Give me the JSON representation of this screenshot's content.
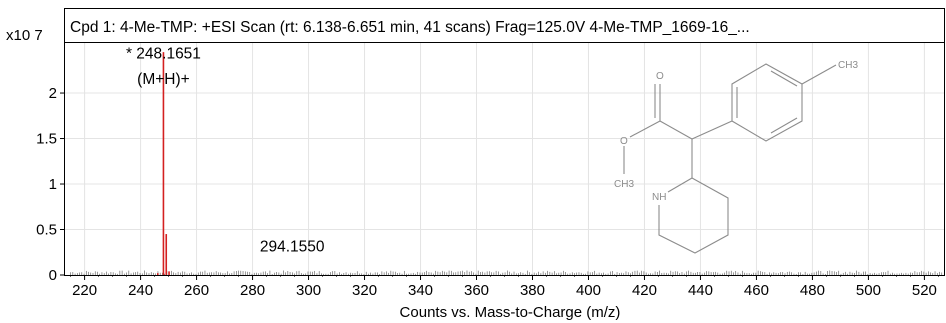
{
  "chart_data": {
    "type": "bar",
    "title": "Cpd 1: 4-Me-TMP: +ESI Scan (rt: 6.138-6.651 min, 41 scans) Frag=125.0V 4-Me-TMP_1669-16_...",
    "xlabel": "Counts vs. Mass-to-Charge (m/z)",
    "ylabel": "",
    "y_multiplier": "x10 7",
    "xlim": [
      213,
      527
    ],
    "ylim": [
      0,
      2.55
    ],
    "x_ticks": [
      "220",
      "240",
      "260",
      "280",
      "300",
      "320",
      "340",
      "360",
      "380",
      "400",
      "420",
      "440",
      "460",
      "480",
      "500",
      "520"
    ],
    "y_ticks": [
      "0",
      "0.5",
      "1",
      "1.5",
      "2"
    ],
    "grid": true,
    "peak_color": "#d42020",
    "peaks": [
      {
        "mz": 248.1651,
        "intensity": 2.45
      },
      {
        "mz": 249.1684,
        "intensity": 0.45
      },
      {
        "mz": 250.17,
        "intensity": 0.04
      },
      {
        "mz": 246.15,
        "intensity": 0.02
      }
    ],
    "annotations": [
      {
        "text": "* 248.1651",
        "x": 248.1651,
        "y": 2.38
      },
      {
        "text": "(M+H)+",
        "x": 248.1651,
        "y": 2.1
      },
      {
        "text": "294.1550",
        "x": 294.155,
        "y": 0.26
      }
    ]
  },
  "structure": {
    "labels": {
      "methyl_top": "CH3",
      "ester_o_top": "O",
      "ester_o_left": "O",
      "methyl_ester": "CH3",
      "amine": "NH"
    }
  }
}
